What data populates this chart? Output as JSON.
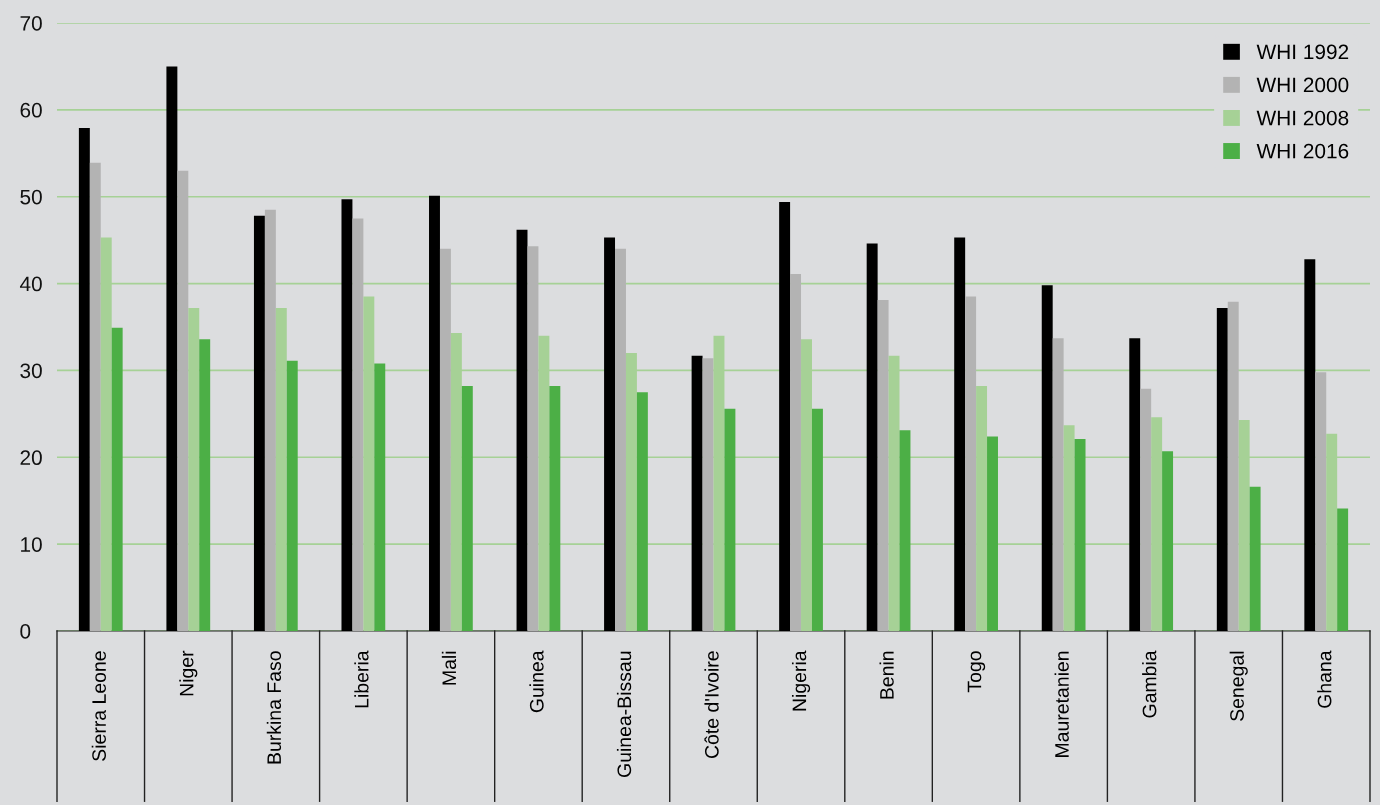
{
  "chart_data": {
    "type": "bar",
    "categories": [
      "Sierra Leone",
      "Niger",
      "Burkina Faso",
      "Liberia",
      "Mali",
      "Guinea",
      "Guinea-Bissau",
      "Côte d'Ivoire",
      "Nigeria",
      "Benin",
      "Togo",
      "Mauretanien",
      "Gambia",
      "Senegal",
      "Ghana"
    ],
    "series": [
      {
        "name": "WHI 1992",
        "color": "#000000",
        "values": [
          57.9,
          65.0,
          47.8,
          49.7,
          50.1,
          46.2,
          45.3,
          31.7,
          49.4,
          44.6,
          45.3,
          39.8,
          33.7,
          37.2,
          42.8
        ]
      },
      {
        "name": "WHI 2000",
        "color": "#b3b3b3",
        "values": [
          53.9,
          53.0,
          48.5,
          47.5,
          44.0,
          44.3,
          44.0,
          31.4,
          41.1,
          38.1,
          38.5,
          33.7,
          27.9,
          37.9,
          29.8
        ]
      },
      {
        "name": "WHI 2008",
        "color": "#a6d196",
        "values": [
          45.3,
          37.2,
          37.2,
          38.5,
          34.3,
          34.0,
          32.0,
          34.0,
          33.6,
          31.7,
          28.2,
          23.7,
          24.6,
          24.3,
          22.7
        ]
      },
      {
        "name": "WHI 2016",
        "color": "#4caf46",
        "values": [
          34.9,
          33.6,
          31.1,
          30.8,
          28.2,
          28.2,
          27.5,
          25.6,
          25.6,
          23.1,
          22.4,
          22.1,
          20.7,
          16.6,
          14.1
        ]
      }
    ],
    "ylim": [
      0,
      70
    ],
    "yticks": [
      0,
      10,
      20,
      30,
      40,
      50,
      60,
      70
    ],
    "grid": "y",
    "legend": "top right"
  }
}
